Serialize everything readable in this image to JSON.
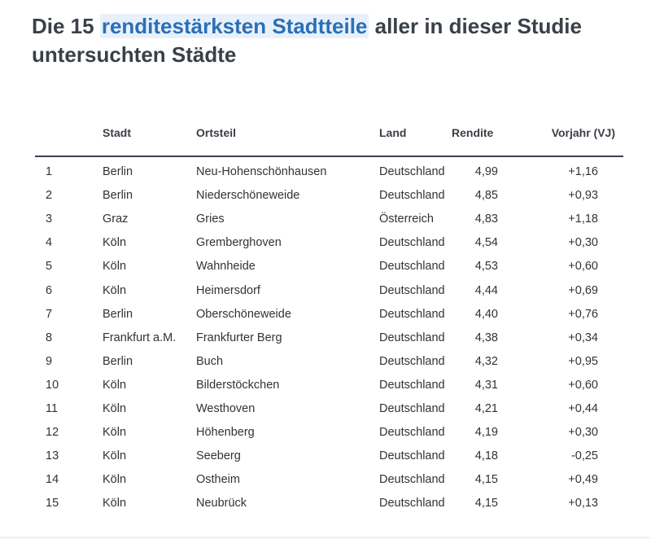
{
  "title": {
    "prefix": "Die 15 ",
    "highlight": "renditestärksten Stadtteile",
    "suffix": " aller in dieser Studie untersuchten Städte"
  },
  "table": {
    "headers": {
      "stadt": "Stadt",
      "ortsteil": "Ortsteil",
      "land": "Land",
      "rendite": "Rendite",
      "vorjahr": "Vorjahr (VJ)"
    },
    "rows": [
      {
        "rank": "1",
        "stadt": "Berlin",
        "ortsteil": "Neu-Hohenschönhausen",
        "land": "Deutschland",
        "rendite": "4,99",
        "vorjahr": "+1,16"
      },
      {
        "rank": "2",
        "stadt": "Berlin",
        "ortsteil": "Niederschöneweide",
        "land": "Deutschland",
        "rendite": "4,85",
        "vorjahr": "+0,93"
      },
      {
        "rank": "3",
        "stadt": "Graz",
        "ortsteil": "Gries",
        "land": "Österreich",
        "rendite": "4,83",
        "vorjahr": "+1,18"
      },
      {
        "rank": "4",
        "stadt": "Köln",
        "ortsteil": "Gremberghoven",
        "land": "Deutschland",
        "rendite": "4,54",
        "vorjahr": "+0,30"
      },
      {
        "rank": "5",
        "stadt": "Köln",
        "ortsteil": "Wahnheide",
        "land": "Deutschland",
        "rendite": "4,53",
        "vorjahr": "+0,60"
      },
      {
        "rank": "6",
        "stadt": "Köln",
        "ortsteil": "Heimersdorf",
        "land": "Deutschland",
        "rendite": "4,44",
        "vorjahr": "+0,69"
      },
      {
        "rank": "7",
        "stadt": "Berlin",
        "ortsteil": "Oberschöneweide",
        "land": "Deutschland",
        "rendite": "4,40",
        "vorjahr": "+0,76"
      },
      {
        "rank": "8",
        "stadt": "Frankfurt a.M.",
        "ortsteil": "Frankfurter Berg",
        "land": "Deutschland",
        "rendite": "4,38",
        "vorjahr": "+0,34"
      },
      {
        "rank": "9",
        "stadt": "Berlin",
        "ortsteil": "Buch",
        "land": "Deutschland",
        "rendite": "4,32",
        "vorjahr": "+0,95"
      },
      {
        "rank": "10",
        "stadt": "Köln",
        "ortsteil": "Bilderstöckchen",
        "land": "Deutschland",
        "rendite": "4,31",
        "vorjahr": "+0,60"
      },
      {
        "rank": "11",
        "stadt": "Köln",
        "ortsteil": "Westhoven",
        "land": "Deutschland",
        "rendite": "4,21",
        "vorjahr": "+0,44"
      },
      {
        "rank": "12",
        "stadt": "Köln",
        "ortsteil": "Höhenberg",
        "land": "Deutschland",
        "rendite": "4,19",
        "vorjahr": "+0,30"
      },
      {
        "rank": "13",
        "stadt": "Köln",
        "ortsteil": "Seeberg",
        "land": "Deutschland",
        "rendite": "4,18",
        "vorjahr": "-0,25"
      },
      {
        "rank": "14",
        "stadt": "Köln",
        "ortsteil": "Ostheim",
        "land": "Deutschland",
        "rendite": "4,15",
        "vorjahr": "+0,49"
      },
      {
        "rank": "15",
        "stadt": "Köln",
        "ortsteil": "Neubrück",
        "land": "Deutschland",
        "rendite": "4,15",
        "vorjahr": "+0,13"
      }
    ]
  }
}
